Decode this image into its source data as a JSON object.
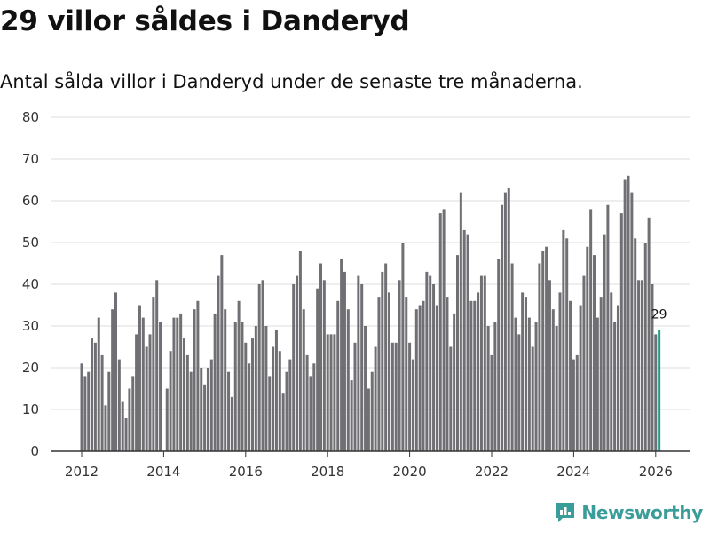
{
  "header": {
    "title": "29 villor såldes i Danderyd",
    "subtitle": "Antal sålda villor i Danderyd under de senaste tre månaderna."
  },
  "brand": {
    "name": "Newsworthy",
    "color": "#3a9d9a"
  },
  "colors": {
    "bar": "#707074",
    "highlight": "#1f9e8c",
    "grid": "#dcdcdc",
    "axis": "#333333"
  },
  "chart_data": {
    "type": "bar",
    "title": "29 villor såldes i Danderyd",
    "subtitle": "Antal sålda villor i Danderyd under de senaste tre månaderna.",
    "xlabel": "",
    "ylabel": "",
    "ylim": [
      0,
      80
    ],
    "yticks": [
      0,
      10,
      20,
      30,
      40,
      50,
      60,
      70,
      80
    ],
    "xticks": [
      2012,
      2014,
      2016,
      2018,
      2020,
      2022,
      2024,
      2026
    ],
    "grid": true,
    "start": {
      "year": 2012,
      "month": 1
    },
    "highlight_label": "29",
    "values": [
      21,
      18,
      19,
      27,
      26,
      32,
      23,
      11,
      19,
      34,
      38,
      22,
      12,
      8,
      15,
      18,
      28,
      35,
      32,
      25,
      28,
      37,
      41,
      31,
      0,
      15,
      24,
      32,
      32,
      33,
      27,
      23,
      19,
      34,
      36,
      20,
      16,
      20,
      22,
      33,
      42,
      47,
      34,
      19,
      13,
      31,
      36,
      31,
      26,
      21,
      27,
      30,
      40,
      41,
      30,
      18,
      25,
      29,
      24,
      14,
      19,
      22,
      40,
      42,
      48,
      34,
      23,
      18,
      21,
      39,
      45,
      41,
      28,
      28,
      28,
      36,
      46,
      43,
      34,
      17,
      26,
      42,
      40,
      30,
      15,
      19,
      25,
      37,
      43,
      45,
      38,
      26,
      26,
      41,
      50,
      37,
      26,
      22,
      34,
      35,
      36,
      43,
      42,
      40,
      35,
      57,
      58,
      37,
      25,
      33,
      47,
      62,
      53,
      52,
      36,
      36,
      38,
      42,
      42,
      30,
      23,
      31,
      46,
      59,
      62,
      63,
      45,
      32,
      28,
      38,
      37,
      32,
      25,
      31,
      45,
      48,
      49,
      41,
      34,
      30,
      38,
      53,
      51,
      36,
      22,
      23,
      35,
      42,
      49,
      58,
      47,
      32,
      37,
      52,
      59,
      38,
      31,
      35,
      57,
      65,
      66,
      62,
      51,
      41,
      41,
      50,
      56,
      40,
      28,
      29
    ]
  }
}
